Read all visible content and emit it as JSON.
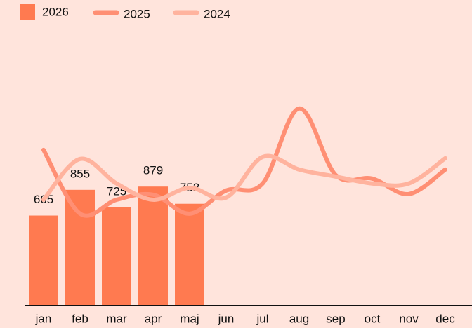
{
  "chart_data": {
    "type": "bar_line",
    "categories": [
      "jan",
      "feb",
      "mar",
      "apr",
      "maj",
      "jun",
      "jul",
      "aug",
      "sep",
      "oct",
      "nov",
      "dec"
    ],
    "series": [
      {
        "name": "2026",
        "type": "bar",
        "color": "#ff7a50",
        "values": [
          665,
          855,
          725,
          879,
          752,
          null,
          null,
          null,
          null,
          null,
          null,
          null
        ]
      },
      {
        "name": "2025",
        "type": "line",
        "color": "#ff8f74",
        "values": [
          1150,
          679,
          782,
          819,
          679,
          850,
          902,
          1456,
          964,
          938,
          824,
          1005
        ]
      },
      {
        "name": "2024",
        "type": "line",
        "color": "#ffb39e",
        "values": [
          782,
          1083,
          902,
          782,
          870,
          798,
          1098,
          1005,
          953,
          902,
          902,
          1088
        ]
      }
    ],
    "ylim": [
      0,
      2200
    ]
  }
}
